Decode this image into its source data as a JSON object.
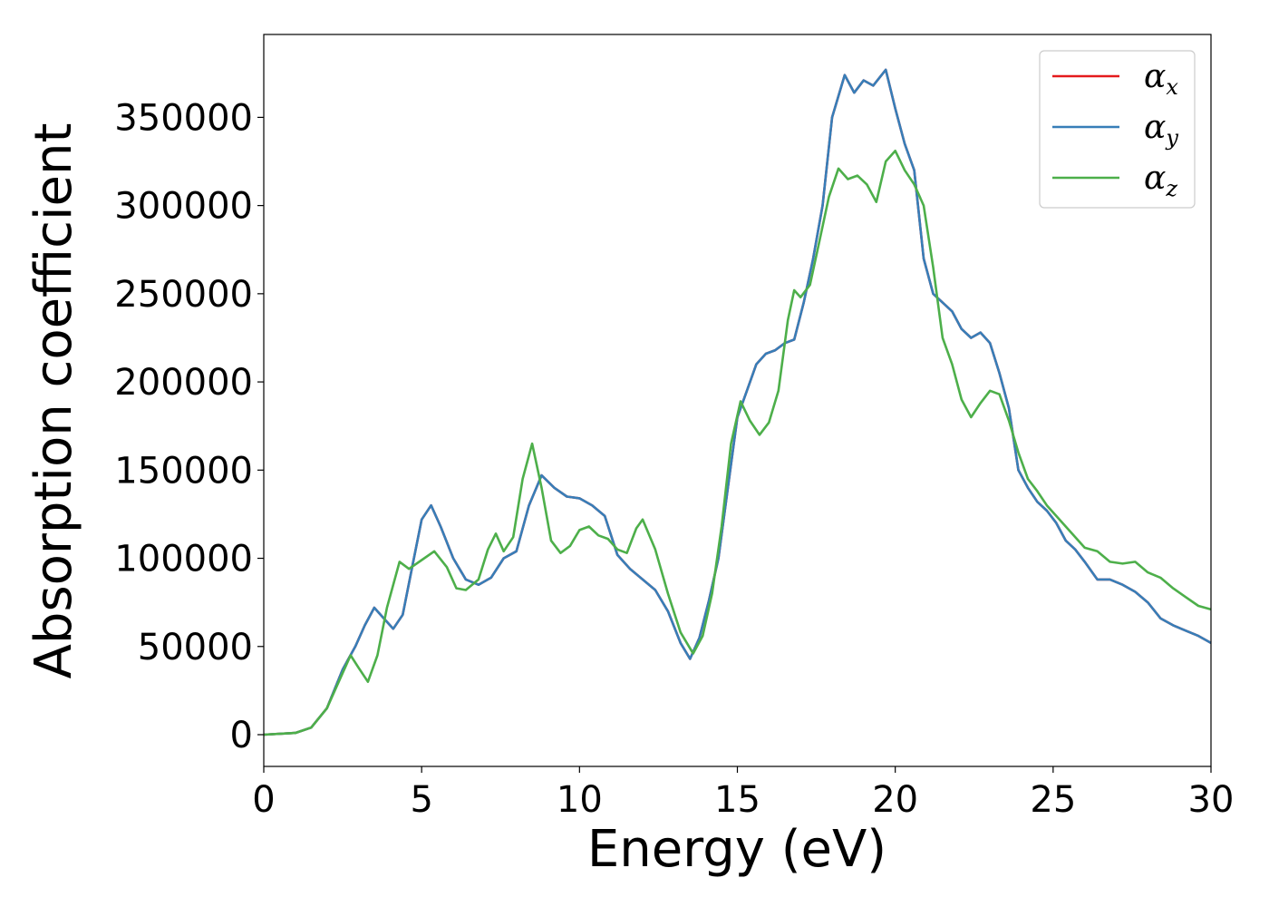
{
  "chart_data": {
    "type": "line",
    "xlabel": "Energy (eV)",
    "ylabel": "Absorption coefficient",
    "xlim": [
      0,
      30
    ],
    "ylim": [
      -18000,
      397000
    ],
    "xticks": [
      0,
      5,
      10,
      15,
      20,
      25,
      30
    ],
    "yticks": [
      0,
      50000,
      100000,
      150000,
      200000,
      250000,
      300000,
      350000
    ],
    "grid": false,
    "legend_position": "top-right",
    "series": [
      {
        "name": "α_x",
        "legend_base": "α",
        "legend_sub": "x",
        "color": "#e41a1c",
        "x": [
          0,
          1,
          1.5,
          2,
          2.5,
          2.9,
          3.2,
          3.5,
          3.8,
          4.1,
          4.4,
          4.7,
          5.0,
          5.3,
          5.6,
          6.0,
          6.4,
          6.8,
          7.2,
          7.6,
          8.0,
          8.4,
          8.8,
          9.2,
          9.6,
          10.0,
          10.4,
          10.8,
          11.2,
          11.6,
          12.0,
          12.4,
          12.8,
          13.2,
          13.5,
          13.8,
          14.1,
          14.4,
          14.7,
          15.0,
          15.3,
          15.6,
          15.9,
          16.2,
          16.5,
          16.8,
          17.1,
          17.4,
          17.7,
          18.0,
          18.4,
          18.7,
          19.0,
          19.3,
          19.7,
          20.0,
          20.3,
          20.6,
          20.9,
          21.2,
          21.5,
          21.8,
          22.1,
          22.4,
          22.7,
          23.0,
          23.3,
          23.6,
          23.9,
          24.2,
          24.5,
          24.8,
          25.1,
          25.4,
          25.7,
          26.0,
          26.4,
          26.8,
          27.2,
          27.6,
          28.0,
          28.4,
          28.8,
          29.2,
          29.6,
          30.0
        ],
        "values": [
          0,
          1000,
          4000,
          15000,
          37000,
          50000,
          62000,
          72000,
          66000,
          60000,
          68000,
          95000,
          122000,
          130000,
          118000,
          100000,
          88000,
          85000,
          89000,
          100000,
          104000,
          130000,
          147000,
          140000,
          135000,
          134000,
          130000,
          124000,
          102000,
          94000,
          88000,
          82000,
          70000,
          52000,
          43000,
          55000,
          76000,
          100000,
          140000,
          180000,
          195000,
          210000,
          216000,
          218000,
          222000,
          224000,
          245000,
          270000,
          300000,
          350000,
          374000,
          364000,
          371000,
          368000,
          377000,
          355000,
          335000,
          320000,
          270000,
          250000,
          245000,
          240000,
          230000,
          225000,
          228000,
          222000,
          205000,
          185000,
          150000,
          140000,
          132000,
          127000,
          120000,
          110000,
          105000,
          98000,
          88000,
          88000,
          85000,
          81000,
          75000,
          66000,
          62000,
          59000,
          56000,
          52000
        ]
      },
      {
        "name": "α_y",
        "legend_base": "α",
        "legend_sub": "y",
        "color": "#377eb8",
        "x": [
          0,
          1,
          1.5,
          2,
          2.5,
          2.9,
          3.2,
          3.5,
          3.8,
          4.1,
          4.4,
          4.7,
          5.0,
          5.3,
          5.6,
          6.0,
          6.4,
          6.8,
          7.2,
          7.6,
          8.0,
          8.4,
          8.8,
          9.2,
          9.6,
          10.0,
          10.4,
          10.8,
          11.2,
          11.6,
          12.0,
          12.4,
          12.8,
          13.2,
          13.5,
          13.8,
          14.1,
          14.4,
          14.7,
          15.0,
          15.3,
          15.6,
          15.9,
          16.2,
          16.5,
          16.8,
          17.1,
          17.4,
          17.7,
          18.0,
          18.4,
          18.7,
          19.0,
          19.3,
          19.7,
          20.0,
          20.3,
          20.6,
          20.9,
          21.2,
          21.5,
          21.8,
          22.1,
          22.4,
          22.7,
          23.0,
          23.3,
          23.6,
          23.9,
          24.2,
          24.5,
          24.8,
          25.1,
          25.4,
          25.7,
          26.0,
          26.4,
          26.8,
          27.2,
          27.6,
          28.0,
          28.4,
          28.8,
          29.2,
          29.6,
          30.0
        ],
        "values": [
          0,
          1000,
          4000,
          15000,
          37000,
          50000,
          62000,
          72000,
          66000,
          60000,
          68000,
          95000,
          122000,
          130000,
          118000,
          100000,
          88000,
          85000,
          89000,
          100000,
          104000,
          130000,
          147000,
          140000,
          135000,
          134000,
          130000,
          124000,
          102000,
          94000,
          88000,
          82000,
          70000,
          52000,
          43000,
          55000,
          76000,
          100000,
          140000,
          180000,
          195000,
          210000,
          216000,
          218000,
          222000,
          224000,
          245000,
          270000,
          300000,
          350000,
          374000,
          364000,
          371000,
          368000,
          377000,
          355000,
          335000,
          320000,
          270000,
          250000,
          245000,
          240000,
          230000,
          225000,
          228000,
          222000,
          205000,
          185000,
          150000,
          140000,
          132000,
          127000,
          120000,
          110000,
          105000,
          98000,
          88000,
          88000,
          85000,
          81000,
          75000,
          66000,
          62000,
          59000,
          56000,
          52000
        ]
      },
      {
        "name": "α_z",
        "legend_base": "α",
        "legend_sub": "z",
        "color": "#4daf4a",
        "x": [
          0,
          1,
          1.5,
          2,
          2.4,
          2.75,
          3.0,
          3.3,
          3.6,
          3.9,
          4.3,
          4.6,
          5.0,
          5.4,
          5.8,
          6.1,
          6.4,
          6.8,
          7.1,
          7.35,
          7.6,
          7.9,
          8.2,
          8.5,
          8.8,
          9.1,
          9.4,
          9.7,
          10.0,
          10.3,
          10.6,
          10.9,
          11.2,
          11.5,
          11.8,
          12.0,
          12.4,
          12.8,
          13.2,
          13.6,
          13.9,
          14.2,
          14.5,
          14.8,
          15.1,
          15.4,
          15.7,
          16.0,
          16.3,
          16.6,
          16.8,
          17.0,
          17.3,
          17.6,
          17.9,
          18.2,
          18.5,
          18.8,
          19.1,
          19.4,
          19.7,
          20.0,
          20.3,
          20.6,
          20.9,
          21.2,
          21.5,
          21.8,
          22.1,
          22.4,
          22.7,
          23.0,
          23.3,
          23.6,
          23.9,
          24.2,
          24.5,
          24.8,
          25.2,
          25.6,
          26.0,
          26.4,
          26.8,
          27.2,
          27.6,
          28.0,
          28.4,
          28.8,
          29.2,
          29.6,
          30.0
        ],
        "values": [
          0,
          1000,
          4000,
          15000,
          31000,
          45000,
          38000,
          30000,
          45000,
          72000,
          98000,
          94000,
          99000,
          104000,
          95000,
          83000,
          82000,
          88000,
          105000,
          114000,
          104000,
          112000,
          145000,
          165000,
          140000,
          110000,
          103000,
          107000,
          116000,
          118000,
          113000,
          111000,
          105000,
          103000,
          117000,
          122000,
          105000,
          80000,
          58000,
          46000,
          56000,
          80000,
          118000,
          165000,
          189000,
          178000,
          170000,
          177000,
          195000,
          235000,
          252000,
          248000,
          255000,
          280000,
          305000,
          321000,
          315000,
          317000,
          312000,
          302000,
          325000,
          331000,
          320000,
          312000,
          300000,
          265000,
          225000,
          210000,
          190000,
          180000,
          188000,
          195000,
          193000,
          178000,
          160000,
          145000,
          138000,
          130000,
          122000,
          114000,
          106000,
          104000,
          98000,
          97000,
          98000,
          92000,
          89000,
          83000,
          78000,
          73000,
          71000
        ]
      }
    ]
  }
}
